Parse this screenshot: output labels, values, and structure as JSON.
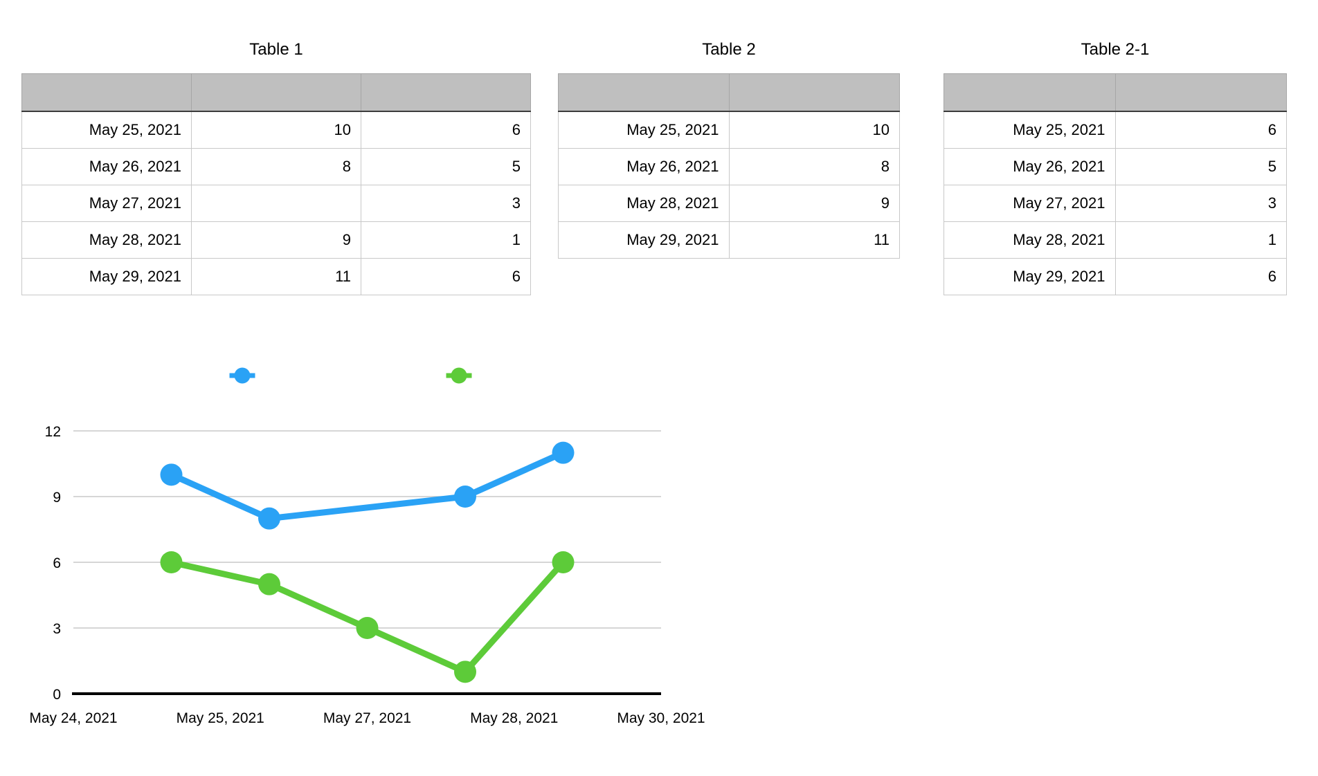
{
  "canvas": {
    "background": "#ffffff"
  },
  "tables": [
    {
      "title": "Table 1",
      "columns": 3,
      "header_fill": "#bfbfbf",
      "rows": [
        [
          "May 25, 2021",
          "10",
          "6"
        ],
        [
          "May 26, 2021",
          "8",
          "5"
        ],
        [
          "May 27, 2021",
          "",
          "3"
        ],
        [
          "May 28, 2021",
          "9",
          "1"
        ],
        [
          "May 29, 2021",
          "11",
          "6"
        ]
      ]
    },
    {
      "title": "Table 2",
      "columns": 2,
      "header_fill": "#bfbfbf",
      "rows": [
        [
          "May 25, 2021",
          "10"
        ],
        [
          "May 26, 2021",
          "8"
        ],
        [
          "May 28, 2021",
          "9"
        ],
        [
          "May 29, 2021",
          "11"
        ]
      ]
    },
    {
      "title": "Table 2-1",
      "columns": 2,
      "header_fill": "#bfbfbf",
      "rows": [
        [
          "May 25, 2021",
          "6"
        ],
        [
          "May 26, 2021",
          "5"
        ],
        [
          "May 27, 2021",
          "3"
        ],
        [
          "May 28, 2021",
          "1"
        ],
        [
          "May 29, 2021",
          "6"
        ]
      ]
    }
  ],
  "chart_data": {
    "type": "line",
    "title": "",
    "x_axis": {
      "tick_labels": [
        "May 24, 2021",
        "May 25, 2021",
        "May 27, 2021",
        "May 28, 2021",
        "May 30, 2021"
      ],
      "range": [
        "May 24, 2021",
        "May 30, 2021"
      ],
      "range_days": 6
    },
    "y_axis": {
      "ticks": [
        0,
        3,
        6,
        9,
        12
      ],
      "ylim": [
        0,
        12
      ]
    },
    "grid": "horizontal-only",
    "legend": {
      "position": "top",
      "labels": [
        "",
        ""
      ]
    },
    "series": [
      {
        "name": "blue",
        "color": "#2AA2F5",
        "points": [
          {
            "date": "May 25, 2021",
            "day_offset": 1,
            "value": 10
          },
          {
            "date": "May 26, 2021",
            "day_offset": 2,
            "value": 8
          },
          {
            "date": "May 28, 2021",
            "day_offset": 4,
            "value": 9
          },
          {
            "date": "May 29, 2021",
            "day_offset": 5,
            "value": 11
          }
        ]
      },
      {
        "name": "green",
        "color": "#5DCB39",
        "points": [
          {
            "date": "May 25, 2021",
            "day_offset": 1,
            "value": 6
          },
          {
            "date": "May 26, 2021",
            "day_offset": 2,
            "value": 5
          },
          {
            "date": "May 27, 2021",
            "day_offset": 3,
            "value": 3
          },
          {
            "date": "May 28, 2021",
            "day_offset": 4,
            "value": 1
          },
          {
            "date": "May 29, 2021",
            "day_offset": 5,
            "value": 6
          }
        ]
      }
    ]
  }
}
